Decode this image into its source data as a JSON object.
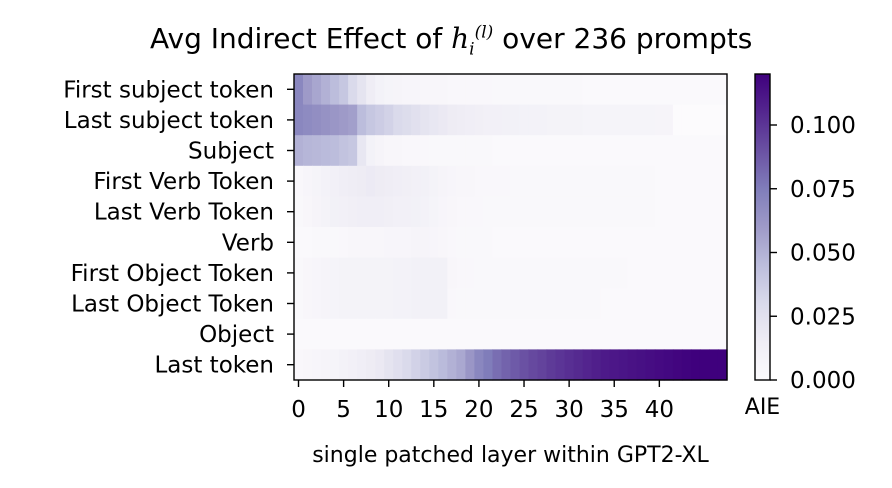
{
  "chart_data": {
    "type": "heatmap",
    "title": {
      "prefix": "Avg Indirect Effect of ",
      "math_var": "h",
      "math_sub": "i",
      "math_sup": "(l)",
      "suffix": " over 236 prompts"
    },
    "xlabel": "single patched layer within GPT2-XL",
    "x_ticks": [
      0,
      5,
      10,
      15,
      20,
      25,
      30,
      35,
      40
    ],
    "x_cells": 48,
    "rows": [
      "First subject token",
      "Last subject token",
      "Subject",
      "First Verb Token",
      "Last Verb Token",
      "Verb",
      "First Object Token",
      "Last Object Token",
      "Object",
      "Last token"
    ],
    "colorbar": {
      "label": "AIE",
      "vmin": 0.0,
      "vmax": 0.12,
      "ticks": [
        "0.000",
        "0.025",
        "0.050",
        "0.075",
        "0.100"
      ],
      "ticks_values": [
        0.0,
        0.025,
        0.05,
        0.075,
        0.1
      ],
      "colormap": "Purples",
      "colors": [
        "#fcfbfd",
        "#efedf5",
        "#dadaeb",
        "#bcbddc",
        "#9e9ac8",
        "#807dba",
        "#6a51a3",
        "#54278f",
        "#3f007d"
      ]
    },
    "values": [
      [
        0.07,
        0.06,
        0.055,
        0.05,
        0.045,
        0.04,
        0.03,
        0.022,
        0.015,
        0.01,
        0.008,
        0.007,
        0.006,
        0.006,
        0.005,
        0.005,
        0.005,
        0.004,
        0.004,
        0.004,
        0.004,
        0.004,
        0.003,
        0.003,
        0.003,
        0.003,
        0.003,
        0.003,
        0.003,
        0.003,
        0.003,
        0.003,
        0.002,
        0.002,
        0.002,
        0.002,
        0.002,
        0.002,
        0.002,
        0.002,
        0.002,
        0.002,
        0.002,
        0.002,
        0.002,
        0.002,
        0.002,
        0.002
      ],
      [
        0.07,
        0.068,
        0.066,
        0.064,
        0.062,
        0.06,
        0.058,
        0.045,
        0.04,
        0.037,
        0.034,
        0.03,
        0.028,
        0.025,
        0.022,
        0.02,
        0.018,
        0.016,
        0.015,
        0.014,
        0.013,
        0.012,
        0.012,
        0.011,
        0.011,
        0.01,
        0.01,
        0.01,
        0.009,
        0.009,
        0.009,
        0.009,
        0.008,
        0.008,
        0.008,
        0.008,
        0.008,
        0.008,
        0.008,
        0.008,
        0.007,
        0.007,
        0.0,
        0.0,
        0.0,
        0.0,
        0.0,
        0.0
      ],
      [
        0.05,
        0.048,
        0.047,
        0.046,
        0.045,
        0.042,
        0.04,
        0.02,
        0.01,
        0.007,
        0.005,
        0.005,
        0.004,
        0.004,
        0.004,
        0.003,
        0.003,
        0.003,
        0.003,
        0.003,
        0.003,
        0.003,
        0.002,
        0.002,
        0.002,
        0.002,
        0.002,
        0.002,
        0.002,
        0.002,
        0.002,
        0.002,
        0.002,
        0.002,
        0.002,
        0.002,
        0.002,
        0.002,
        0.002,
        0.002,
        0.002,
        0.002,
        0.002,
        0.002,
        0.002,
        0.002,
        0.002,
        0.002
      ],
      [
        0.004,
        0.006,
        0.008,
        0.01,
        0.012,
        0.014,
        0.015,
        0.016,
        0.017,
        0.016,
        0.015,
        0.014,
        0.013,
        0.012,
        0.011,
        0.009,
        0.007,
        0.006,
        0.005,
        0.005,
        0.004,
        0.004,
        0.004,
        0.004,
        0.003,
        0.003,
        0.003,
        0.003,
        0.003,
        0.003,
        0.003,
        0.003,
        0.003,
        0.003,
        0.003,
        0.003,
        0.003,
        0.003,
        0.003,
        0.003,
        0.002,
        0.002,
        0.002,
        0.002,
        0.002,
        0.002,
        0.002,
        0.002
      ],
      [
        0.003,
        0.005,
        0.007,
        0.009,
        0.011,
        0.012,
        0.013,
        0.014,
        0.014,
        0.014,
        0.013,
        0.012,
        0.012,
        0.011,
        0.01,
        0.008,
        0.006,
        0.005,
        0.004,
        0.004,
        0.004,
        0.003,
        0.003,
        0.003,
        0.003,
        0.003,
        0.003,
        0.003,
        0.003,
        0.003,
        0.003,
        0.003,
        0.003,
        0.003,
        0.003,
        0.003,
        0.003,
        0.003,
        0.003,
        0.003,
        0.002,
        0.002,
        0.002,
        0.002,
        0.002,
        0.002,
        0.002,
        0.002
      ],
      [
        0.002,
        0.002,
        0.003,
        0.003,
        0.003,
        0.004,
        0.005,
        0.005,
        0.005,
        0.005,
        0.006,
        0.006,
        0.006,
        0.007,
        0.007,
        0.006,
        0.005,
        0.004,
        0.003,
        0.003,
        0.003,
        0.003,
        0.002,
        0.002,
        0.002,
        0.002,
        0.002,
        0.002,
        0.002,
        0.002,
        0.002,
        0.002,
        0.002,
        0.002,
        0.002,
        0.002,
        0.002,
        0.002,
        0.002,
        0.002,
        0.002,
        0.002,
        0.002,
        0.002,
        0.002,
        0.002,
        0.002,
        0.002
      ],
      [
        0.003,
        0.005,
        0.006,
        0.007,
        0.008,
        0.009,
        0.009,
        0.009,
        0.009,
        0.009,
        0.009,
        0.01,
        0.01,
        0.011,
        0.011,
        0.011,
        0.011,
        0.005,
        0.004,
        0.004,
        0.003,
        0.003,
        0.003,
        0.003,
        0.003,
        0.003,
        0.003,
        0.003,
        0.003,
        0.003,
        0.003,
        0.003,
        0.003,
        0.003,
        0.003,
        0.003,
        0.003,
        0.002,
        0.002,
        0.002,
        0.002,
        0.002,
        0.002,
        0.002,
        0.002,
        0.002,
        0.002,
        0.002
      ],
      [
        0.003,
        0.005,
        0.006,
        0.007,
        0.008,
        0.009,
        0.009,
        0.009,
        0.009,
        0.009,
        0.009,
        0.01,
        0.01,
        0.011,
        0.011,
        0.011,
        0.011,
        0.004,
        0.003,
        0.003,
        0.003,
        0.003,
        0.003,
        0.003,
        0.003,
        0.003,
        0.003,
        0.003,
        0.003,
        0.003,
        0.003,
        0.003,
        0.003,
        0.003,
        0.002,
        0.002,
        0.002,
        0.002,
        0.002,
        0.002,
        0.002,
        0.002,
        0.002,
        0.002,
        0.002,
        0.002,
        0.002,
        0.002
      ],
      [
        0.002,
        0.002,
        0.002,
        0.002,
        0.002,
        0.002,
        0.002,
        0.002,
        0.002,
        0.002,
        0.002,
        0.002,
        0.002,
        0.002,
        0.002,
        0.002,
        0.002,
        0.002,
        0.002,
        0.002,
        0.002,
        0.002,
        0.002,
        0.002,
        0.002,
        0.002,
        0.002,
        0.002,
        0.002,
        0.002,
        0.002,
        0.002,
        0.002,
        0.002,
        0.002,
        0.002,
        0.002,
        0.002,
        0.002,
        0.002,
        0.002,
        0.002,
        0.002,
        0.002,
        0.002,
        0.002,
        0.002,
        0.002
      ],
      [
        0.004,
        0.005,
        0.006,
        0.007,
        0.008,
        0.01,
        0.012,
        0.014,
        0.016,
        0.018,
        0.022,
        0.026,
        0.03,
        0.034,
        0.038,
        0.042,
        0.046,
        0.05,
        0.054,
        0.062,
        0.07,
        0.075,
        0.08,
        0.084,
        0.087,
        0.09,
        0.093,
        0.095,
        0.098,
        0.1,
        0.102,
        0.104,
        0.106,
        0.108,
        0.11,
        0.111,
        0.112,
        0.113,
        0.114,
        0.115,
        0.116,
        0.117,
        0.118,
        0.119,
        0.12,
        0.12,
        0.12,
        0.12
      ]
    ]
  }
}
